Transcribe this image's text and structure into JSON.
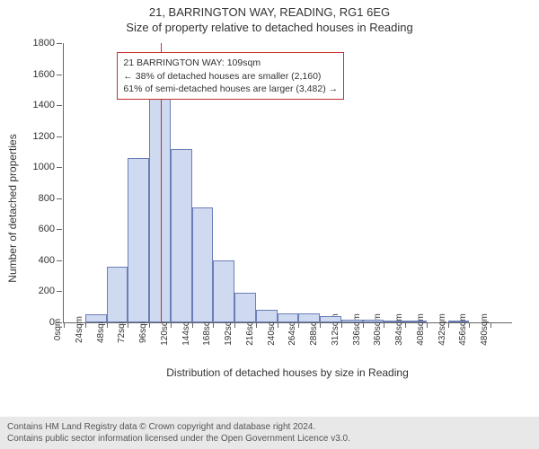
{
  "title_line1": "21, BARRINGTON WAY, READING, RG1 6EG",
  "title_line2": "Size of property relative to detached houses in Reading",
  "chart": {
    "type": "histogram",
    "ylabel": "Number of detached properties",
    "xlabel": "Distribution of detached houses by size in Reading",
    "ylim": [
      0,
      1800
    ],
    "ytick_step": 200,
    "xlim_sqm": [
      0,
      504
    ],
    "xtick_step_sqm": 24,
    "xtick_suffix": "sqm",
    "bin_width_sqm": 24,
    "bar_fill": "#cfd9ef",
    "bar_stroke": "#6a7fb8",
    "background": "#ffffff",
    "axis_color": "#666666",
    "tick_font_size": 11,
    "label_font_size": 12,
    "values": [
      0,
      50,
      360,
      1060,
      1460,
      1120,
      740,
      400,
      190,
      80,
      60,
      60,
      40,
      20,
      20,
      10,
      10,
      0,
      10,
      0,
      0
    ],
    "marker": {
      "position_sqm": 109,
      "color": "#c23030",
      "line_width": 1
    },
    "annotation": {
      "lines": [
        "21 BARRINGTON WAY: 109sqm",
        "← 38% of detached houses are smaller (2,160)",
        "61% of semi-detached houses are larger (3,482) →"
      ],
      "border_color": "#c23030",
      "left_sqm": 60,
      "top_value": 1740
    }
  },
  "footer": {
    "line1": "Contains HM Land Registry data © Crown copyright and database right 2024.",
    "line2": "Contains public sector information licensed under the Open Government Licence v3.0.",
    "background": "#e8e8e8"
  }
}
